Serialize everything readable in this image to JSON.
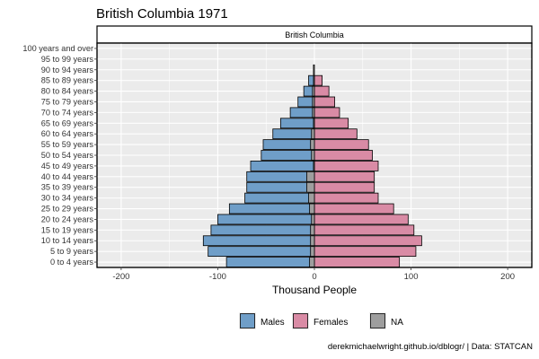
{
  "chart_data": {
    "type": "bar",
    "orientation": "horizontal",
    "title": "British Columbia 1971",
    "facet_label": "British Columbia",
    "xlabel": "Thousand People",
    "xlim": [
      -225,
      225
    ],
    "x_ticks": [
      -200,
      -100,
      0,
      100,
      200
    ],
    "x_tick_labels": [
      "-200",
      "-100",
      "0",
      "100",
      "200"
    ],
    "grid": true,
    "legend_position": "bottom",
    "caption": "derekmichaelwright.github.io/dblogr/ | Data: STATCAN",
    "categories": [
      "0 to 4 years",
      "5 to 9 years",
      "10 to 14 years",
      "15 to 19 years",
      "20 to 24 years",
      "25 to 29 years",
      "30 to 34 years",
      "35 to 39 years",
      "40 to 44 years",
      "45 to 49 years",
      "50 to 54 years",
      "55 to 59 years",
      "60 to 64 years",
      "65 to 69 years",
      "70 to 74 years",
      "75 to 79 years",
      "80 to 84 years",
      "85 to 89 years",
      "90 to 94 years",
      "95 to 99 years",
      "100 years and over"
    ],
    "series": [
      {
        "name": "Males",
        "color": "#6f9ec8",
        "values": [
          -91,
          -110,
          -115,
          -107,
          -100,
          -88,
          -72,
          -70,
          -70,
          -66,
          -55,
          -53,
          -43,
          -35,
          -25,
          -17,
          -11,
          -6,
          0,
          0,
          0
        ]
      },
      {
        "name": "Females",
        "color": "#d98ba5",
        "values": [
          88,
          105,
          111,
          103,
          97,
          82,
          66,
          62,
          62,
          66,
          60,
          56,
          44,
          35,
          26,
          21,
          15,
          8,
          0,
          0,
          0
        ]
      },
      {
        "name": "NA",
        "color": "#9e9e9e",
        "values": [
          -5,
          -4,
          -4,
          -4,
          -3,
          -5,
          -6,
          -8,
          -8,
          -1,
          -3,
          -4,
          -3,
          -1,
          -2,
          -2,
          -2,
          -1,
          -1,
          0,
          0
        ]
      }
    ]
  }
}
